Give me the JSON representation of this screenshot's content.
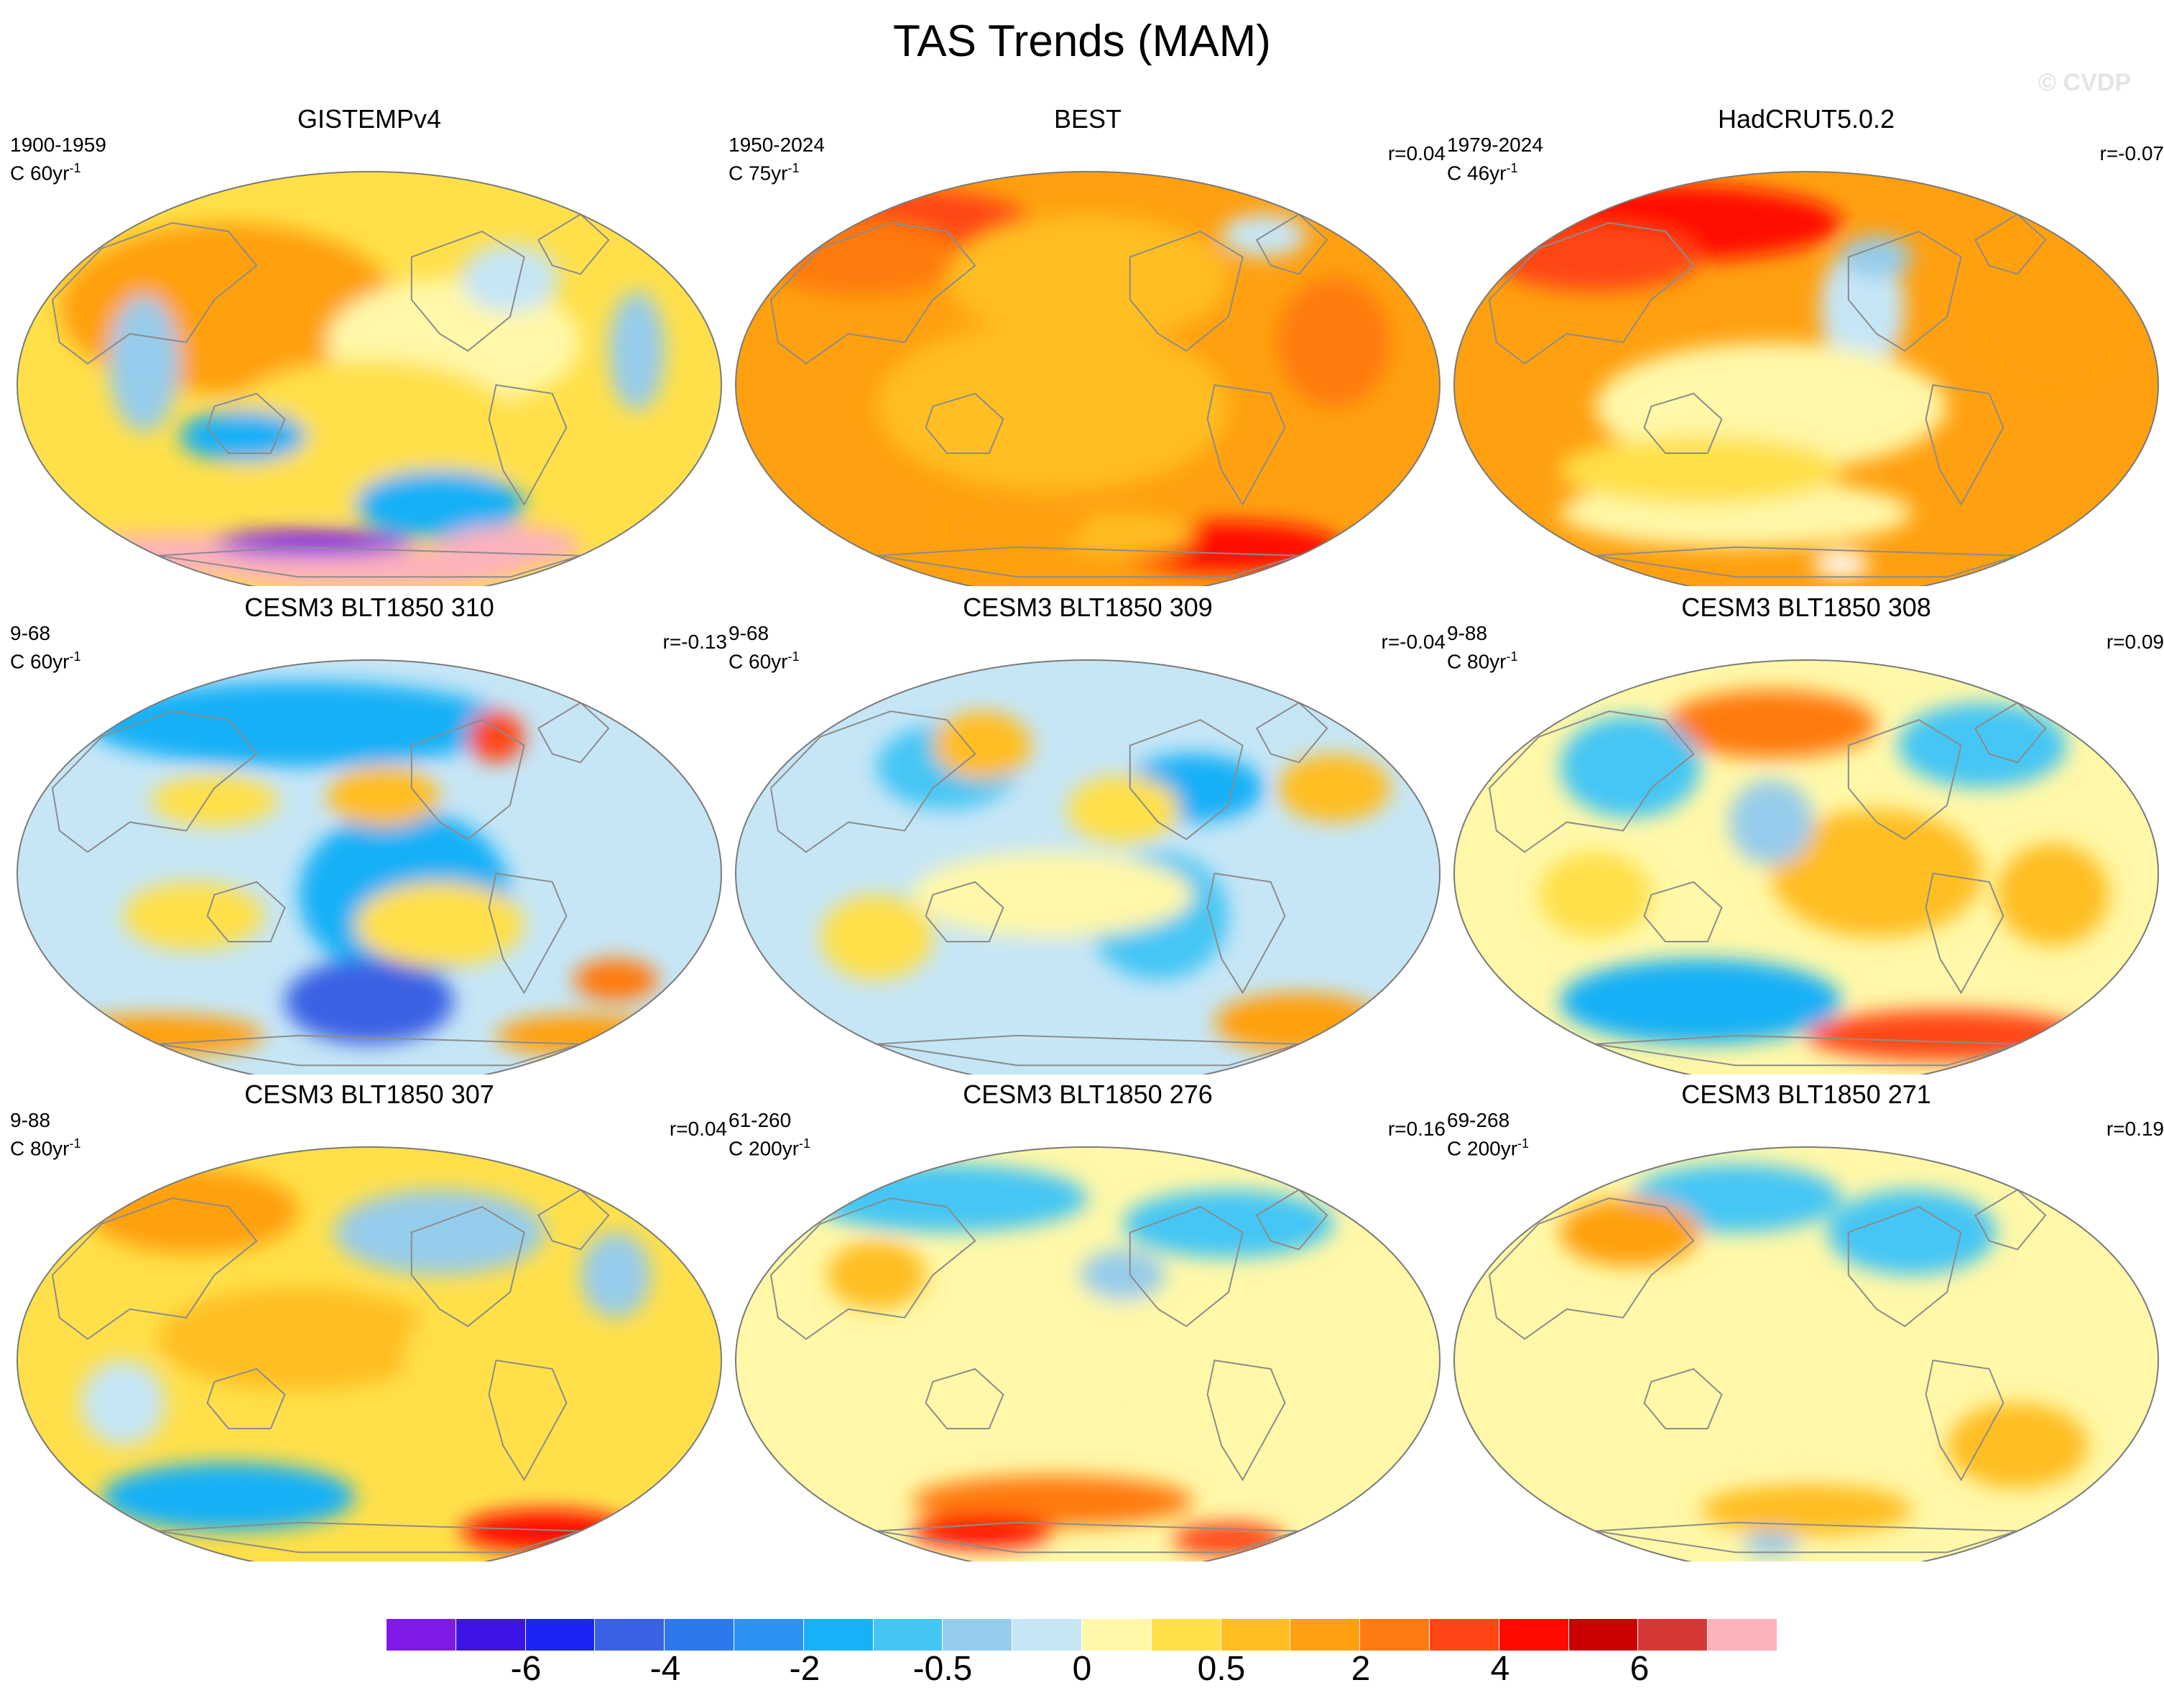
{
  "title": "TAS Trends (MAM)",
  "watermark": "© CVDP",
  "colors": {
    "palette": [
      "#7f1ae8",
      "#3e14e6",
      "#1a24f4",
      "#3a60e4",
      "#2d78ec",
      "#2b92f2",
      "#18b0f6",
      "#44c6f4",
      "#96cceb",
      "#c6e6f6",
      "#fff8a8",
      "#ffe04a",
      "#ffbe20",
      "#ffa010",
      "#ff7a10",
      "#ff4614",
      "#ff0a00",
      "#cc0000",
      "#d63838",
      "#fdb2bc"
    ],
    "land": "#8c8c8c",
    "frame": "#7a7a7a"
  },
  "colorbar": {
    "tick_labels": [
      "-6",
      "-4",
      "-2",
      "-0.5",
      "0",
      "0.5",
      "2",
      "4",
      "6"
    ]
  },
  "panels": [
    {
      "title": "GISTEMPv4",
      "period": "1900-1959",
      "units": "C 60yr",
      "unit_exp": "-1",
      "corr": "",
      "base": 11,
      "blobs": [
        [
          0.3,
          0.32,
          0.24,
          0.2,
          13
        ],
        [
          0.62,
          0.4,
          0.18,
          0.15,
          10
        ],
        [
          0.5,
          0.62,
          0.22,
          0.18,
          11
        ],
        [
          0.32,
          0.62,
          0.09,
          0.06,
          6
        ],
        [
          0.6,
          0.78,
          0.12,
          0.08,
          6
        ],
        [
          0.18,
          0.45,
          0.05,
          0.16,
          8
        ],
        [
          0.88,
          0.42,
          0.04,
          0.14,
          8
        ],
        [
          0.7,
          0.25,
          0.07,
          0.08,
          9
        ],
        [
          0.25,
          0.9,
          0.25,
          0.05,
          19
        ],
        [
          0.5,
          0.93,
          0.22,
          0.05,
          19
        ],
        [
          0.7,
          0.88,
          0.1,
          0.05,
          19
        ],
        [
          0.42,
          0.87,
          0.14,
          0.03,
          0
        ]
      ]
    },
    {
      "title": "BEST",
      "period": "1950-2024",
      "units": "C 75yr",
      "unit_exp": "-1",
      "corr": "r=0.04",
      "base": 13,
      "blobs": [
        [
          0.25,
          0.14,
          0.18,
          0.1,
          15
        ],
        [
          0.18,
          0.2,
          0.14,
          0.09,
          14
        ],
        [
          0.5,
          0.25,
          0.2,
          0.15,
          12
        ],
        [
          0.45,
          0.55,
          0.25,
          0.2,
          12
        ],
        [
          0.75,
          0.15,
          0.06,
          0.05,
          9
        ],
        [
          0.7,
          0.88,
          0.16,
          0.06,
          16
        ],
        [
          0.55,
          0.85,
          0.1,
          0.05,
          12
        ],
        [
          0.4,
          0.83,
          0.1,
          0.05,
          13
        ],
        [
          0.85,
          0.4,
          0.08,
          0.15,
          14
        ]
      ]
    },
    {
      "title": "HadCRUT5.0.2",
      "period": "1979-2024",
      "units": "C 46yr",
      "unit_exp": "-1",
      "corr": "r=-0.07",
      "base": 13,
      "blobs": [
        [
          0.3,
          0.12,
          0.25,
          0.09,
          16
        ],
        [
          0.2,
          0.2,
          0.15,
          0.08,
          15
        ],
        [
          0.58,
          0.32,
          0.06,
          0.15,
          9
        ],
        [
          0.6,
          0.2,
          0.05,
          0.05,
          8
        ],
        [
          0.45,
          0.55,
          0.25,
          0.15,
          10
        ],
        [
          0.4,
          0.8,
          0.25,
          0.08,
          10
        ],
        [
          0.35,
          0.7,
          0.2,
          0.08,
          11
        ],
        [
          0.55,
          0.92,
          0.04,
          0.03,
          -1
        ],
        [
          0.85,
          0.3,
          0.1,
          0.2,
          13
        ]
      ]
    },
    {
      "title": "CESM3 BLT1850 310",
      "period": "9-68",
      "units": "C 60yr",
      "unit_exp": "-1",
      "corr": "r=-0.13",
      "base": 9,
      "blobs": [
        [
          0.4,
          0.15,
          0.3,
          0.1,
          6
        ],
        [
          0.55,
          0.55,
          0.15,
          0.2,
          6
        ],
        [
          0.5,
          0.8,
          0.12,
          0.1,
          3
        ],
        [
          0.28,
          0.33,
          0.09,
          0.06,
          11
        ],
        [
          0.52,
          0.32,
          0.08,
          0.07,
          12
        ],
        [
          0.68,
          0.18,
          0.04,
          0.06,
          15
        ],
        [
          0.85,
          0.75,
          0.06,
          0.05,
          14
        ],
        [
          0.2,
          0.88,
          0.15,
          0.05,
          13
        ],
        [
          0.8,
          0.88,
          0.12,
          0.05,
          13
        ],
        [
          0.6,
          0.62,
          0.12,
          0.1,
          11
        ],
        [
          0.25,
          0.6,
          0.1,
          0.08,
          11
        ]
      ]
    },
    {
      "title": "CESM3 BLT1850 309",
      "period": "9-68",
      "units": "C 60yr",
      "unit_exp": "-1",
      "corr": "r=-0.04",
      "base": 9,
      "blobs": [
        [
          0.3,
          0.25,
          0.1,
          0.1,
          7
        ],
        [
          0.65,
          0.3,
          0.1,
          0.08,
          6
        ],
        [
          0.6,
          0.6,
          0.1,
          0.15,
          7
        ],
        [
          0.35,
          0.2,
          0.07,
          0.08,
          12
        ],
        [
          0.55,
          0.35,
          0.08,
          0.08,
          11
        ],
        [
          0.85,
          0.3,
          0.08,
          0.08,
          12
        ],
        [
          0.8,
          0.85,
          0.12,
          0.07,
          13
        ],
        [
          0.45,
          0.55,
          0.2,
          0.1,
          10
        ],
        [
          0.2,
          0.65,
          0.08,
          0.1,
          11
        ]
      ]
    },
    {
      "title": "CESM3 BLT1850 308",
      "period": "9-88",
      "units": "C 80yr",
      "unit_exp": "-1",
      "corr": "r=0.09",
      "base": 10,
      "blobs": [
        [
          0.45,
          0.15,
          0.15,
          0.08,
          14
        ],
        [
          0.25,
          0.25,
          0.1,
          0.12,
          7
        ],
        [
          0.75,
          0.2,
          0.12,
          0.1,
          7
        ],
        [
          0.35,
          0.8,
          0.2,
          0.1,
          6
        ],
        [
          0.7,
          0.88,
          0.2,
          0.06,
          15
        ],
        [
          0.6,
          0.5,
          0.15,
          0.15,
          12
        ],
        [
          0.45,
          0.38,
          0.06,
          0.1,
          8
        ],
        [
          0.85,
          0.55,
          0.08,
          0.12,
          12
        ],
        [
          0.2,
          0.55,
          0.08,
          0.1,
          11
        ]
      ]
    },
    {
      "title": "CESM3 BLT1850 307",
      "period": "9-88",
      "units": "C 80yr",
      "unit_exp": "-1",
      "corr": "r=0.04",
      "base": 11,
      "blobs": [
        [
          0.25,
          0.15,
          0.15,
          0.1,
          13
        ],
        [
          0.6,
          0.2,
          0.15,
          0.1,
          8
        ],
        [
          0.3,
          0.82,
          0.18,
          0.08,
          6
        ],
        [
          0.75,
          0.9,
          0.12,
          0.05,
          16
        ],
        [
          0.4,
          0.45,
          0.2,
          0.12,
          12
        ],
        [
          0.15,
          0.6,
          0.06,
          0.1,
          9
        ],
        [
          0.85,
          0.3,
          0.05,
          0.1,
          8
        ],
        [
          0.65,
          0.5,
          0.1,
          0.15,
          11
        ]
      ]
    },
    {
      "title": "CESM3 BLT1850 276",
      "period": "61-260",
      "units": "C 200yr",
      "unit_exp": "-1",
      "corr": "r=0.16",
      "base": 10,
      "blobs": [
        [
          0.3,
          0.12,
          0.2,
          0.08,
          7
        ],
        [
          0.7,
          0.18,
          0.15,
          0.08,
          7
        ],
        [
          0.45,
          0.83,
          0.2,
          0.06,
          14
        ],
        [
          0.35,
          0.9,
          0.1,
          0.04,
          16
        ],
        [
          0.7,
          0.92,
          0.08,
          0.04,
          15
        ],
        [
          0.5,
          0.5,
          0.2,
          0.15,
          10
        ],
        [
          0.2,
          0.3,
          0.07,
          0.08,
          12
        ],
        [
          0.55,
          0.3,
          0.06,
          0.06,
          8
        ]
      ]
    },
    {
      "title": "CESM3 BLT1850 271",
      "period": "69-268",
      "units": "C 200yr",
      "unit_exp": "-1",
      "corr": "r=0.19",
      "base": 10,
      "blobs": [
        [
          0.4,
          0.12,
          0.15,
          0.08,
          7
        ],
        [
          0.65,
          0.2,
          0.12,
          0.1,
          7
        ],
        [
          0.25,
          0.2,
          0.1,
          0.08,
          13
        ],
        [
          0.45,
          0.6,
          0.25,
          0.15,
          10
        ],
        [
          0.5,
          0.85,
          0.15,
          0.06,
          12
        ],
        [
          0.45,
          0.93,
          0.04,
          0.03,
          8
        ],
        [
          0.8,
          0.7,
          0.1,
          0.1,
          12
        ]
      ]
    }
  ]
}
